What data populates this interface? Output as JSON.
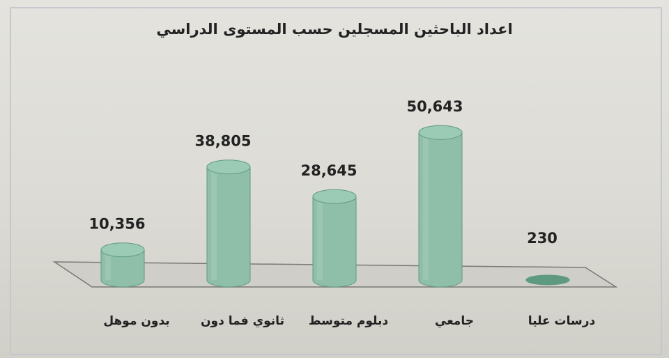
{
  "chart_data": {
    "type": "bar",
    "title": "اعداد الباحثين المسجلين حسب المستوى الدراسي",
    "categories": [
      "بدون موهل",
      "ثانوي فما دون",
      "دبلوم متوسط",
      "جامعي",
      "درسات عليا"
    ],
    "values": [
      10356,
      38805,
      28645,
      50643,
      230
    ],
    "value_labels": [
      "10,356",
      "38,805",
      "28,645",
      "50,643",
      "230"
    ],
    "xlabel": "",
    "ylabel": "",
    "ylim": [
      0,
      55000
    ],
    "grid": false,
    "legend": "none",
    "bar_shape": "cylinder",
    "colors": {
      "bar_fill": "#8fbfa8",
      "bar_top": "#9ccbb5",
      "bar_edge": "#5f9a83",
      "floor": "#cfcec8",
      "floor_edge": "#7a7a76",
      "text": "#222222"
    }
  }
}
